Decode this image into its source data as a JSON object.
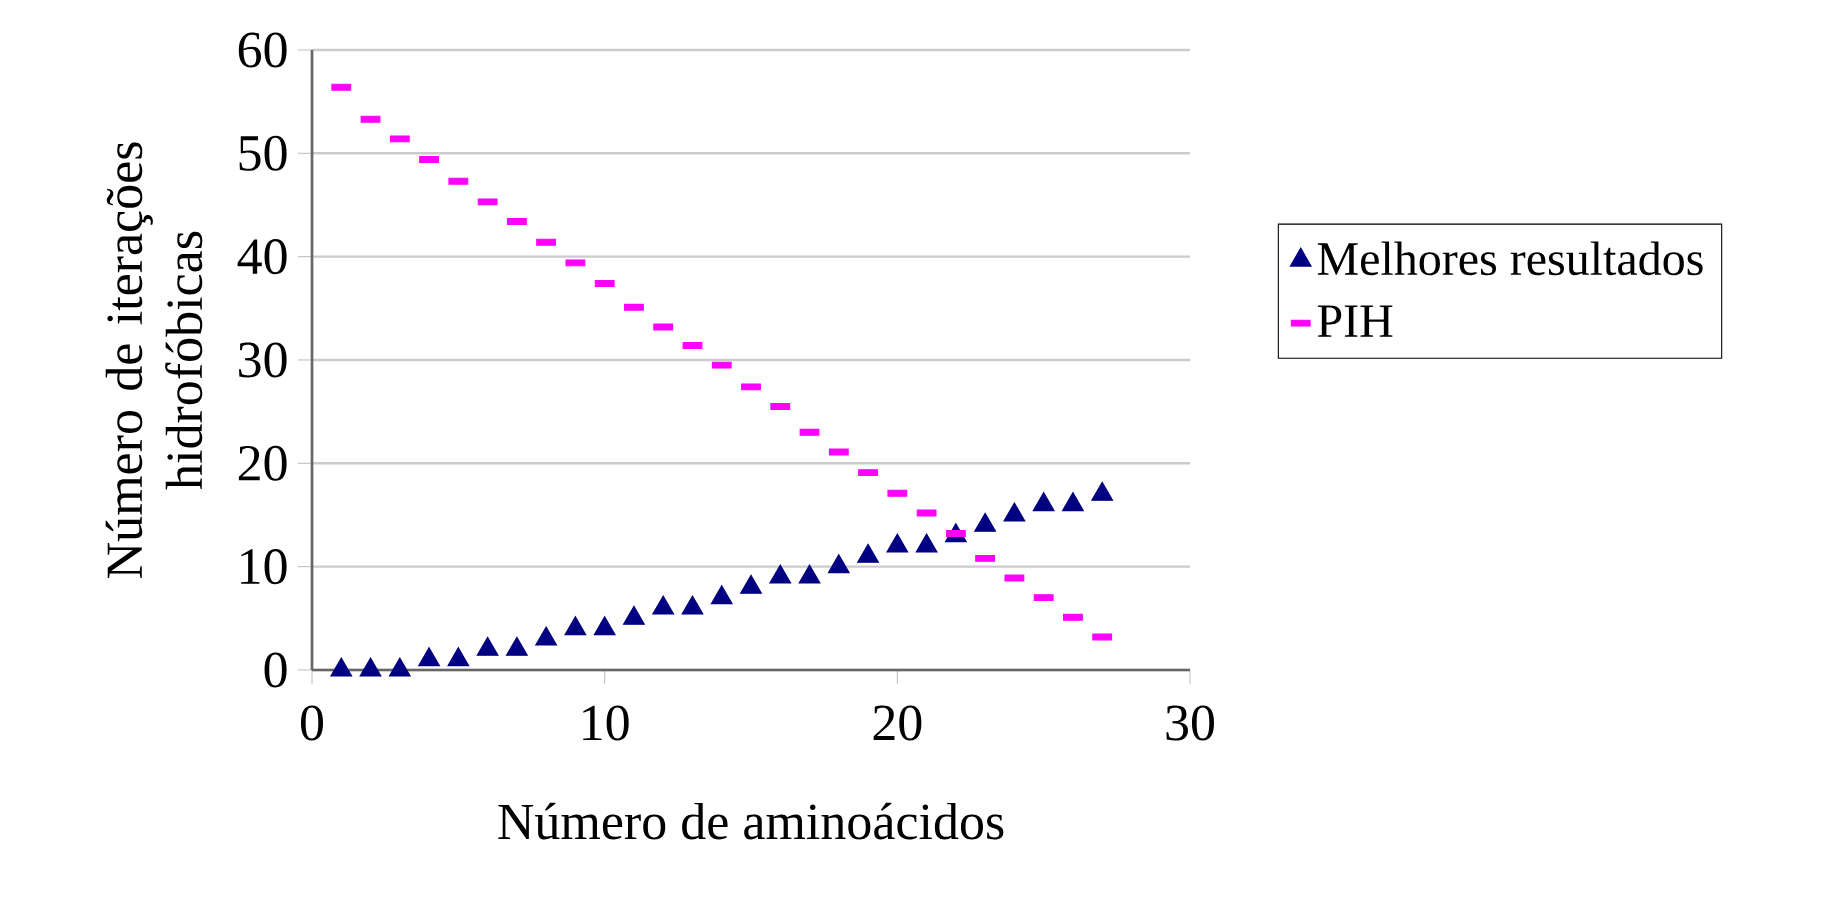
{
  "chart_data": {
    "type": "scatter",
    "xlabel": "Número de aminoácidos",
    "ylabel": "Número de iterações hidrofóbicas",
    "x": [
      1,
      2,
      3,
      4,
      5,
      6,
      7,
      8,
      9,
      10,
      11,
      12,
      13,
      14,
      15,
      16,
      17,
      18,
      19,
      20,
      21,
      22,
      23,
      24,
      25,
      26,
      27
    ],
    "series": [
      {
        "name": "Melhores resultados",
        "color": "#000080",
        "marker": "triangle",
        "values": [
          0,
          0,
          0,
          1,
          1,
          2,
          2,
          3,
          4,
          4,
          5,
          6,
          6,
          7,
          8,
          9,
          9,
          10,
          11,
          12,
          12,
          13,
          14,
          15,
          16,
          16,
          17
        ]
      },
      {
        "name": "PIH",
        "color": "#ff00ff",
        "marker": "square",
        "values": [
          56.4,
          53.3,
          51.4,
          49.4,
          47.3,
          45.3,
          43.4,
          41.4,
          39.4,
          37.4,
          35.1,
          33.2,
          31.4,
          29.5,
          27.4,
          25.5,
          23.0,
          21.1,
          19.1,
          17.1,
          15.2,
          13.2,
          10.8,
          8.9,
          7.0,
          5.1,
          3.2
        ]
      }
    ],
    "xlim": [
      0,
      30
    ],
    "ylim": [
      0,
      60
    ],
    "xticks": [
      0,
      10,
      20,
      30
    ],
    "yticks": [
      0,
      10,
      20,
      30,
      40,
      50,
      60
    ],
    "grid": "y",
    "legend": "right"
  }
}
